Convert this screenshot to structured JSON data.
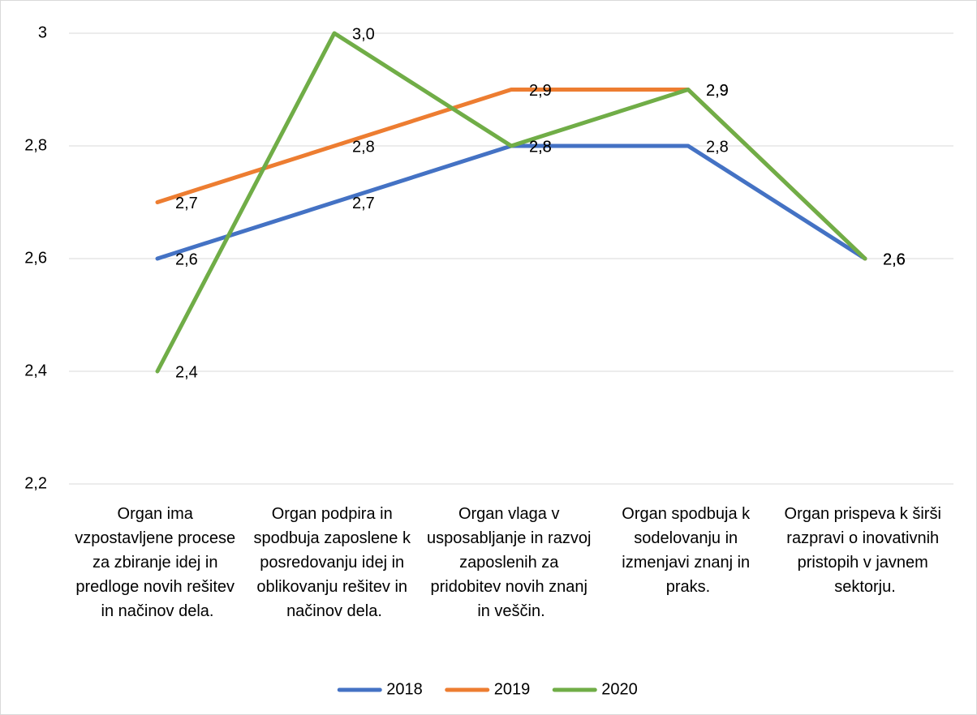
{
  "chart_data": {
    "type": "line",
    "categories": [
      "Organ ima vzpostavljene procese za zbiranje idej in predloge novih rešitev in načinov dela.",
      "Organ podpira in spodbuja zaposlene k posredovanju idej in oblikovanju rešitev in načinov dela.",
      "Organ vlaga v usposabljanje in razvoj zaposlenih za pridobitev novih znanj in veščin.",
      "Organ spodbuja k sodelovanju in izmenjavi znanj in praks.",
      "Organ prispeva k širši razpravi o inovativnih pristopih v javnem sektorju."
    ],
    "series": [
      {
        "name": "2018",
        "color": "#4472c4",
        "values": [
          2.6,
          2.7,
          2.8,
          2.8,
          2.6
        ],
        "value_labels": [
          "2,6",
          "2,7",
          "2,8",
          "2,8",
          "2,6"
        ]
      },
      {
        "name": "2019",
        "color": "#ed7d31",
        "values": [
          2.7,
          2.8,
          2.9,
          2.9,
          2.6
        ],
        "value_labels": [
          "2,7",
          "2,8",
          "2,9",
          "2,9",
          "2,6"
        ]
      },
      {
        "name": "2020",
        "color": "#70ad47",
        "values": [
          2.4,
          3.0,
          2.8,
          2.9,
          2.6
        ],
        "value_labels": [
          "2,4",
          "3,0",
          "2,8",
          "2,9",
          "2,6"
        ]
      }
    ],
    "ylim": [
      2.2,
      3
    ],
    "yticks": [
      {
        "value": 2.2,
        "label": "2,2"
      },
      {
        "value": 2.4,
        "label": "2,4"
      },
      {
        "value": 2.6,
        "label": "2,6"
      },
      {
        "value": 2.8,
        "label": "2,8"
      },
      3
    ],
    "grid": true,
    "legend": "bottom"
  }
}
